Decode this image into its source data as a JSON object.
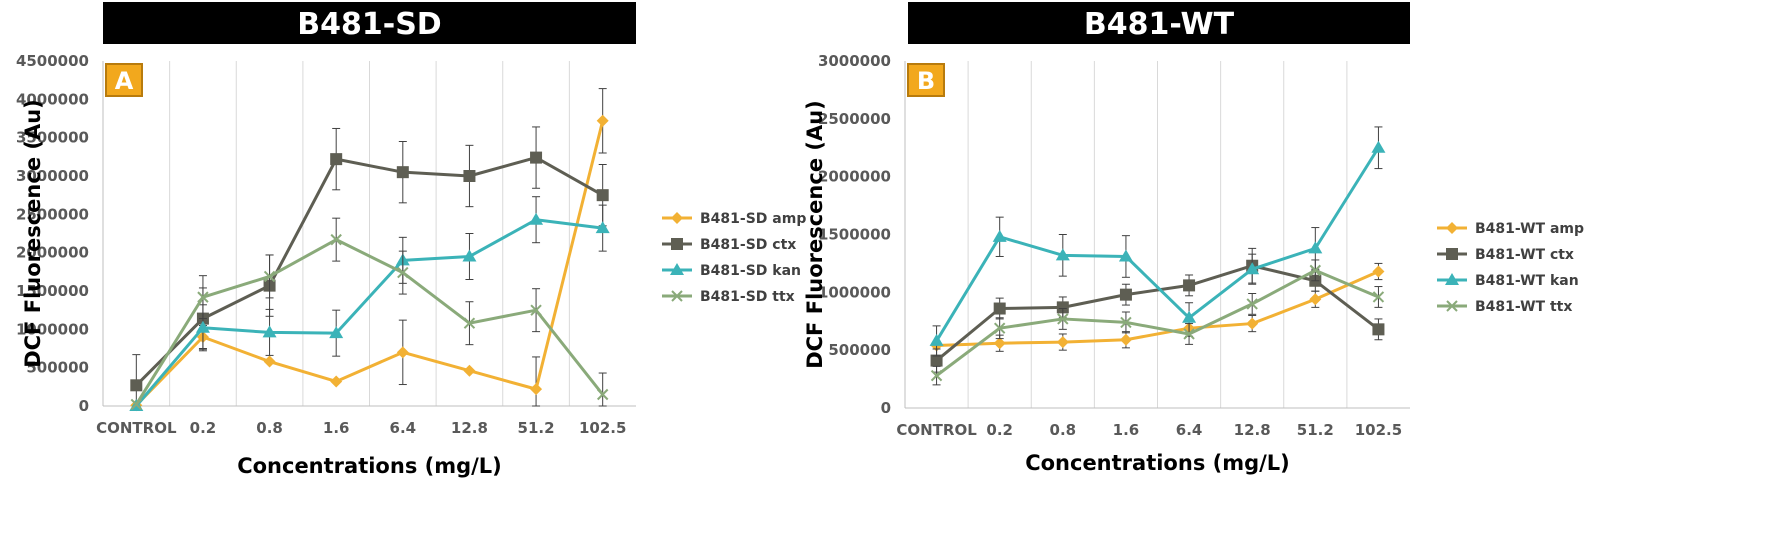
{
  "chart_data": [
    {
      "type": "line",
      "panel_label": "A",
      "title": "B481-SD",
      "xlabel": "Concentrations (mg/L)",
      "ylabel": "DCF Fluorescence (Au)",
      "categories": [
        "CONTROL",
        "0.2",
        "0.8",
        "1.6",
        "6.4",
        "12.8",
        "51.2",
        "102.5"
      ],
      "ylim": [
        0,
        4500000
      ],
      "yticks": [
        0,
        500000,
        1000000,
        1500000,
        2000000,
        2500000,
        3000000,
        3500000,
        4000000,
        4500000
      ],
      "grid": "vertical",
      "legend": "right",
      "series": [
        {
          "name": "B481-SD amp",
          "color": "#F2B134",
          "marker": "diamond",
          "values": [
            10000,
            900000,
            580000,
            320000,
            700000,
            460000,
            220000,
            3720000
          ],
          "errors": [
            0,
            150000,
            0,
            0,
            420000,
            0,
            420000,
            420000
          ]
        },
        {
          "name": "B481-SD ctx",
          "color": "#5E5E53",
          "marker": "square",
          "values": [
            270000,
            1140000,
            1570000,
            3220000,
            3050000,
            3000000,
            3240000,
            2750000
          ],
          "errors": [
            400000,
            400000,
            400000,
            400000,
            400000,
            400000,
            400000,
            400000
          ]
        },
        {
          "name": "B481-SD kan",
          "color": "#3BB3B8",
          "marker": "triangle",
          "values": [
            0,
            1020000,
            960000,
            950000,
            1900000,
            1950000,
            2430000,
            2320000
          ],
          "errors": [
            0,
            300000,
            300000,
            300000,
            300000,
            300000,
            300000,
            300000
          ]
        },
        {
          "name": "B481-SD ttx",
          "color": "#8AAA7A",
          "marker": "x",
          "values": [
            20000,
            1420000,
            1690000,
            2170000,
            1740000,
            1080000,
            1250000,
            150000
          ],
          "errors": [
            0,
            280000,
            280000,
            280000,
            280000,
            280000,
            280000,
            280000
          ]
        }
      ]
    },
    {
      "type": "line",
      "panel_label": "B",
      "title": "B481-WT",
      "xlabel": "Concentrations (mg/L)",
      "ylabel": "DCF Fluorescence (Au)",
      "categories": [
        "CONTROL",
        "0.2",
        "0.8",
        "1.6",
        "6.4",
        "12.8",
        "51.2",
        "102.5"
      ],
      "ylim": [
        0,
        3000000
      ],
      "yticks": [
        0,
        500000,
        1000000,
        1500000,
        2000000,
        2500000,
        3000000
      ],
      "grid": "vertical",
      "legend": "right",
      "series": [
        {
          "name": "B481-WT amp",
          "color": "#F2B134",
          "marker": "diamond",
          "values": [
            540000,
            560000,
            570000,
            590000,
            690000,
            730000,
            940000,
            1180000
          ],
          "errors": [
            0,
            70000,
            70000,
            70000,
            70000,
            70000,
            70000,
            70000
          ]
        },
        {
          "name": "B481-WT ctx",
          "color": "#5E5E53",
          "marker": "square",
          "values": [
            410000,
            860000,
            870000,
            980000,
            1060000,
            1230000,
            1100000,
            680000
          ],
          "errors": [
            100000,
            90000,
            90000,
            90000,
            90000,
            150000,
            90000,
            90000
          ]
        },
        {
          "name": "B481-WT kan",
          "color": "#3BB3B8",
          "marker": "triangle",
          "values": [
            580000,
            1480000,
            1320000,
            1310000,
            780000,
            1200000,
            1380000,
            2250000
          ],
          "errors": [
            130000,
            170000,
            180000,
            180000,
            130000,
            130000,
            180000,
            180000
          ]
        },
        {
          "name": "B481-WT ttx",
          "color": "#8AAA7A",
          "marker": "x",
          "values": [
            280000,
            690000,
            770000,
            740000,
            640000,
            900000,
            1190000,
            960000
          ],
          "errors": [
            80000,
            90000,
            90000,
            90000,
            90000,
            90000,
            90000,
            90000
          ]
        }
      ]
    }
  ]
}
